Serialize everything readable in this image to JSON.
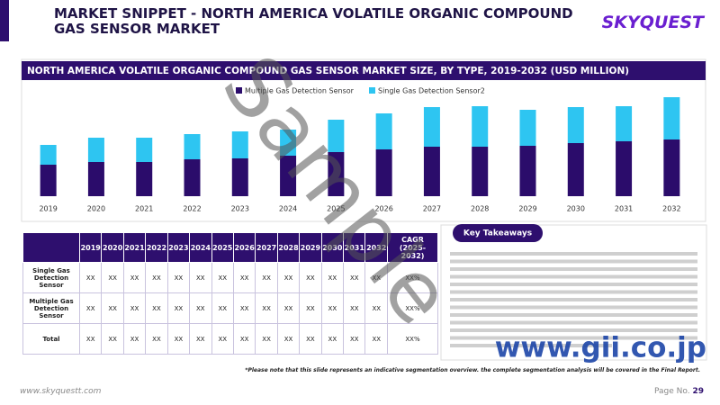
{
  "header": {
    "title": "MARKET SNIPPET - NORTH AMERICA VOLATILE ORGANIC COMPOUND GAS SENSOR MARKET",
    "logo": "SKYQUEST"
  },
  "chart_data": {
    "type": "bar",
    "stacked": true,
    "title": "NORTH AMERICA VOLATILE ORGANIC COMPOUND GAS SENSOR MARKET SIZE, BY TYPE, 2019-2032 (USD MILLION)",
    "categories": [
      "2019",
      "2020",
      "2021",
      "2022",
      "2023",
      "2024",
      "2025",
      "2026",
      "2027",
      "2028",
      "2029",
      "2030",
      "2031",
      "2032"
    ],
    "series": [
      {
        "name": "Multiple Gas Detection Sensor",
        "color": "#2b0c6b",
        "values": [
          35,
          38,
          38,
          41,
          42,
          45,
          49,
          52,
          55,
          55,
          56,
          59,
          61,
          63
        ]
      },
      {
        "name": "Single Gas Detection Sensor2",
        "color": "#2ec5f1",
        "values": [
          22,
          27,
          27,
          28,
          30,
          29,
          36,
          40,
          44,
          45,
          40,
          40,
          39,
          47
        ]
      }
    ],
    "ylim": [
      0,
      130
    ],
    "legend": "top"
  },
  "table": {
    "columns": [
      "2019",
      "2020",
      "2021",
      "2022",
      "2023",
      "2024",
      "2025",
      "2026",
      "2027",
      "2028",
      "2029",
      "2030",
      "2031",
      "2032",
      "CAGR (2025-2032)"
    ],
    "rows": [
      [
        "Single Gas Detection Sensor",
        "XX",
        "XX",
        "XX",
        "XX",
        "XX",
        "XX",
        "XX",
        "XX",
        "XX",
        "XX",
        "XX",
        "XX",
        "XX",
        "XX",
        "XX%"
      ],
      [
        "Multiple Gas Detection Sensor",
        "XX",
        "XX",
        "XX",
        "XX",
        "XX",
        "XX",
        "XX",
        "XX",
        "XX",
        "XX",
        "XX",
        "XX",
        "XX",
        "XX",
        "XX%"
      ],
      [
        "Total",
        "XX",
        "XX",
        "XX",
        "XX",
        "XX",
        "XX",
        "XX",
        "XX",
        "XX",
        "XX",
        "XX",
        "XX",
        "XX",
        "XX",
        "XX%"
      ]
    ]
  },
  "takeaways": {
    "title": "Key Takeaways"
  },
  "footnote": "*Please note that this slide represents an indicative segmentation overview. the complete segmentation analysis will be covered in the Final Report.",
  "footer": {
    "url": "www.skyquestt.com",
    "page_label": "Page No.",
    "page": 29
  },
  "watermarks": [
    "Sample",
    "www.gii.co.jp"
  ]
}
